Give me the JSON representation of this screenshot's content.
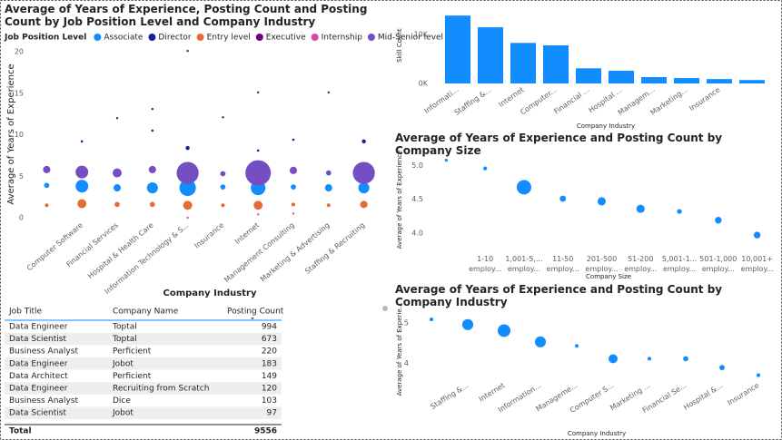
{
  "chart_data": [
    {
      "type": "bubble",
      "title": "Average of Years of Experience, Posting Count and Posting Count by Job Position Level and Company Industry",
      "legend_title": "Job Position Level",
      "x_label": "Company Industry",
      "y_label": "Average of Years of Experience",
      "categories": [
        null,
        "Computer Software",
        "Financial Services",
        "Hospital & Health Care",
        "Information Technology & S...",
        "Insurance",
        "Internet",
        "Management Consulting",
        "Marketing & Advertising",
        "Staffing & Recruiting"
      ],
      "ylim": [
        0,
        20
      ],
      "yticks": [
        0,
        5,
        10,
        15,
        20
      ],
      "series": [
        {
          "name": "Associate",
          "color": "#118DFF",
          "values": [
            3.9,
            3.8,
            3.6,
            3.6,
            3.6,
            3.7,
            3.6,
            3.7,
            3.6,
            3.6
          ],
          "sizes": [
            100,
            600,
            200,
            450,
            1000,
            100,
            800,
            100,
            200,
            450
          ]
        },
        {
          "name": "Director",
          "color": "#12239E",
          "values": [
            null,
            9.2,
            null,
            10.5,
            8.4,
            null,
            8.1,
            9.4,
            null,
            9.2
          ],
          "sizes": [
            null,
            20,
            null,
            20,
            60,
            null,
            20,
            20,
            null,
            60
          ]
        },
        {
          "name": "Entry level",
          "color": "#E66C37",
          "values": [
            1.5,
            1.7,
            1.6,
            1.6,
            1.5,
            1.5,
            1.5,
            1.6,
            1.5,
            1.6
          ],
          "sizes": [
            50,
            300,
            100,
            100,
            300,
            50,
            300,
            50,
            50,
            200
          ]
        },
        {
          "name": "Executive",
          "color": "#6B007B",
          "values": [
            null,
            null,
            12.0,
            13.1,
            20.1,
            12.1,
            15.1,
            null,
            15.1,
            null
          ],
          "sizes": [
            null,
            null,
            10,
            10,
            10,
            10,
            10,
            null,
            10,
            null
          ]
        },
        {
          "name": "Internship",
          "color": "#E044A7",
          "values": [
            null,
            null,
            null,
            null,
            0.0,
            null,
            0.4,
            0.5,
            null,
            null
          ],
          "sizes": [
            null,
            null,
            null,
            null,
            10,
            null,
            10,
            10,
            null,
            null
          ]
        },
        {
          "name": "Mid-Senior level",
          "color": "#744EC2",
          "values": [
            5.8,
            5.5,
            5.4,
            5.8,
            5.4,
            5.3,
            5.4,
            5.7,
            5.4,
            5.4
          ],
          "sizes": [
            200,
            600,
            300,
            200,
            1800,
            100,
            2400,
            200,
            100,
            1800
          ]
        }
      ]
    },
    {
      "type": "bar",
      "x_label": "Company Industry",
      "y_label": "Skill Count",
      "categories": [
        "Informati...",
        "Staffing &...",
        "Internet",
        "Computer...",
        "Financial ...",
        "Hospital ...",
        "Managem...",
        "Marketing...",
        "Insurance",
        null
      ],
      "values": [
        13900,
        11500,
        8300,
        7800,
        3100,
        2600,
        1300,
        1100,
        900,
        700
      ],
      "color": "#118DFF",
      "ylim": [
        0,
        14300
      ],
      "yticks": [
        {
          "value": 0,
          "label": "0K"
        },
        {
          "value": 10000,
          "label": "10K"
        }
      ]
    },
    {
      "type": "bubble",
      "title": "Average of Years of Experience and Posting Count by Company Size",
      "x_label": "Company Size",
      "y_label": "Average of Years of Experience",
      "categories": [
        null,
        "1-10 employ...",
        "1,001-5,... employ...",
        "11-50 employ...",
        "201-500 employ...",
        "51-200 employ...",
        "5,001-1... employ...",
        "501-1,000 employ...",
        "10,001+ employ..."
      ],
      "values": [
        5.08,
        4.96,
        4.68,
        4.51,
        4.47,
        4.36,
        4.32,
        4.19,
        3.97
      ],
      "sizes": [
        60,
        100,
        1400,
        250,
        450,
        450,
        150,
        300,
        300
      ],
      "color": "#118DFF",
      "ylim": [
        3.85,
        5.17
      ],
      "yticks": [
        {
          "value": 4,
          "label": "4.0"
        },
        {
          "value": 4.5,
          "label": "4.5"
        },
        {
          "value": 5,
          "label": "5.0"
        }
      ]
    },
    {
      "type": "bubble",
      "title": "Average of Years of Experience and Posting Count by Company Industry",
      "x_label": "Company Industry",
      "y_label": "Average of Years of Experie...",
      "categories": [
        null,
        "Staffing &...",
        "Internet",
        "Information...",
        "Manageme...",
        "Computer S...",
        "Marketing ...",
        "Financial Se...",
        "Hospital &...",
        "Insurance"
      ],
      "values": [
        5.09,
        4.96,
        4.81,
        4.53,
        4.43,
        4.11,
        4.11,
        4.11,
        3.89,
        3.7
      ],
      "sizes": [
        50,
        450,
        600,
        450,
        50,
        300,
        50,
        100,
        100,
        50
      ],
      "color": "#118DFF",
      "ylim": [
        3.6,
        5.25
      ],
      "yticks": [
        4,
        5
      ]
    }
  ],
  "table": {
    "columns": [
      "Job Title",
      "Company Name",
      "Posting Count"
    ],
    "rows": [
      [
        "Data Engineer",
        "Toptal",
        994
      ],
      [
        "Data Scientist",
        "Toptal",
        673
      ],
      [
        "Business Analyst",
        "Perficient",
        220
      ],
      [
        "Data Engineer",
        "Jobot",
        183
      ],
      [
        "Data Architect",
        "Perficient",
        149
      ],
      [
        "Data Engineer",
        "Recruiting from Scratch",
        120
      ],
      [
        "Business Analyst",
        "Dice",
        103
      ],
      [
        "Data Scientist",
        "Jobot",
        97
      ]
    ],
    "total": {
      "label": "Total",
      "value": 9556
    }
  }
}
